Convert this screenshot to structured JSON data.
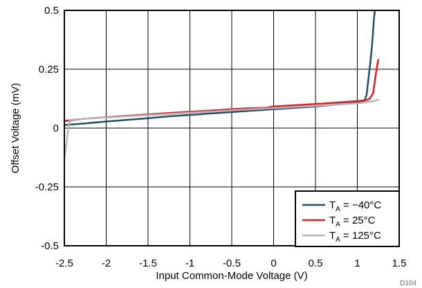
{
  "chart_data": {
    "type": "line",
    "title": "",
    "xlabel": "Input Common-Mode Voltage (V)",
    "ylabel": "Offset Voltage (mV)",
    "xlim": [
      -2.5,
      1.5
    ],
    "ylim": [
      -0.5,
      0.5
    ],
    "xticks": [
      -2.5,
      -2,
      -1.5,
      -1,
      -0.5,
      0,
      0.5,
      1,
      1.5
    ],
    "xtick_labels": [
      "-2.5",
      "-2",
      "-1.5",
      "-1",
      "-0.5",
      "0",
      "0.5",
      "1",
      "1.5"
    ],
    "yticks": [
      -0.5,
      -0.25,
      0,
      0.25,
      0.5
    ],
    "ytick_labels": [
      "-0.5",
      "-0.25",
      "0",
      "0.25",
      "0.5"
    ],
    "grid": true,
    "legend_position": "bottom-right",
    "figure_id": "D104",
    "series": [
      {
        "name_main": "T",
        "name_sub": "A",
        "name_rest": " = −40°C",
        "color": "#1f4e6b",
        "points": [
          [
            -2.5,
            0.013
          ],
          [
            -2.25,
            0.02
          ],
          [
            -2.0,
            0.028
          ],
          [
            -1.75,
            0.035
          ],
          [
            -1.5,
            0.042
          ],
          [
            -1.25,
            0.05
          ],
          [
            -1.0,
            0.056
          ],
          [
            -0.75,
            0.062
          ],
          [
            -0.5,
            0.068
          ],
          [
            -0.25,
            0.074
          ],
          [
            0.0,
            0.08
          ],
          [
            0.25,
            0.086
          ],
          [
            0.5,
            0.092
          ],
          [
            0.75,
            0.1
          ],
          [
            1.0,
            0.108
          ],
          [
            1.08,
            0.112
          ],
          [
            1.11,
            0.14
          ],
          [
            1.13,
            0.2
          ],
          [
            1.15,
            0.26
          ],
          [
            1.17,
            0.33
          ],
          [
            1.18,
            0.37
          ],
          [
            1.19,
            0.42
          ],
          [
            1.2,
            0.47
          ],
          [
            1.21,
            0.5
          ]
        ]
      },
      {
        "name_main": "T",
        "name_sub": "A",
        "name_rest": " = 25°C",
        "color": "#e8191f",
        "points": [
          [
            -2.5,
            0.03
          ],
          [
            -2.25,
            0.04
          ],
          [
            -2.0,
            0.046
          ],
          [
            -1.75,
            0.052
          ],
          [
            -1.5,
            0.058
          ],
          [
            -1.25,
            0.064
          ],
          [
            -1.0,
            0.069
          ],
          [
            -0.75,
            0.074
          ],
          [
            -0.5,
            0.08
          ],
          [
            -0.3,
            0.084
          ],
          [
            -0.1,
            0.086
          ],
          [
            0.0,
            0.092
          ],
          [
            0.25,
            0.097
          ],
          [
            0.5,
            0.102
          ],
          [
            0.75,
            0.108
          ],
          [
            1.0,
            0.115
          ],
          [
            1.1,
            0.118
          ],
          [
            1.15,
            0.125
          ],
          [
            1.19,
            0.15
          ],
          [
            1.21,
            0.2
          ],
          [
            1.23,
            0.25
          ],
          [
            1.25,
            0.29
          ]
        ]
      },
      {
        "name_main": "T",
        "name_sub": "A",
        "name_rest": " = 125°C",
        "color": "#b5b5b5",
        "points": [
          [
            -2.5,
            -0.13
          ],
          [
            -2.47,
            -0.05
          ],
          [
            -2.45,
            0.01
          ],
          [
            -2.43,
            0.035
          ],
          [
            -2.25,
            0.04
          ],
          [
            -2.0,
            0.045
          ],
          [
            -1.75,
            0.05
          ],
          [
            -1.5,
            0.055
          ],
          [
            -1.25,
            0.06
          ],
          [
            -1.0,
            0.065
          ],
          [
            -0.75,
            0.07
          ],
          [
            -0.5,
            0.075
          ],
          [
            -0.25,
            0.08
          ],
          [
            0.0,
            0.085
          ],
          [
            0.25,
            0.09
          ],
          [
            0.5,
            0.095
          ],
          [
            0.75,
            0.1
          ],
          [
            1.0,
            0.105
          ],
          [
            1.1,
            0.11
          ],
          [
            1.2,
            0.115
          ],
          [
            1.25,
            0.12
          ]
        ]
      }
    ]
  }
}
